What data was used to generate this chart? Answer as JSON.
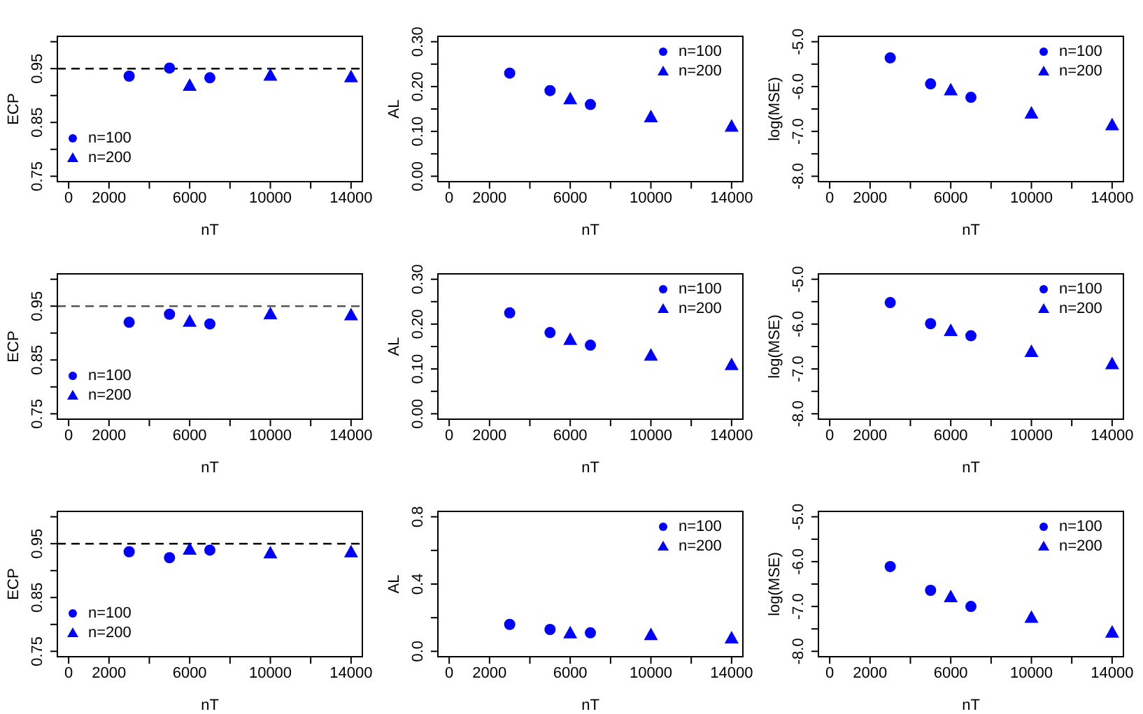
{
  "chart_data": [
    {
      "type": "scatter",
      "xlabel": "nT",
      "ylabel": "ECP",
      "legend": "bottom left",
      "xlim": [
        -560,
        14560
      ],
      "xticks": [
        0,
        2000,
        {
          "value": 4000,
          "label": null
        },
        6000,
        {
          "value": 8000,
          "label": null
        },
        10000,
        {
          "value": 12000,
          "label": null
        },
        14000
      ],
      "ylim": [
        0.74,
        1.01
      ],
      "yticks": [
        0.75,
        {
          "value": 0.8,
          "label": null
        },
        0.85,
        {
          "value": 0.9,
          "label": null
        },
        0.95,
        {
          "value": 1.0,
          "label": null
        }
      ],
      "ref_lines": [
        {
          "axis": "y",
          "value": 0.95,
          "color": "#000000",
          "line_style": "dashed"
        }
      ],
      "series": [
        {
          "name": "n=100",
          "color": "#0000ff",
          "marker": "circle",
          "x": [
            3000,
            5000,
            7000
          ],
          "values": [
            0.936,
            0.951,
            0.933
          ]
        },
        {
          "name": "n=200",
          "color": "#0000ff",
          "marker": "triangle",
          "x": [
            6000,
            10000,
            14000
          ],
          "values": [
            0.919,
            0.938,
            0.935
          ]
        }
      ]
    },
    {
      "type": "scatter",
      "xlabel": "nT",
      "ylabel": "AL",
      "legend": "top right",
      "xlim": [
        -560,
        14560
      ],
      "xticks": [
        0,
        2000,
        {
          "value": 4000,
          "label": null
        },
        6000,
        {
          "value": 8000,
          "label": null
        },
        10000,
        {
          "value": 12000,
          "label": null
        },
        14000
      ],
      "ylim": [
        -0.012,
        0.312
      ],
      "yticks": [
        {
          "value": 0,
          "label": "0.00"
        },
        {
          "value": 0.05,
          "label": null
        },
        {
          "value": 0.1,
          "label": "0.10"
        },
        {
          "value": 0.15,
          "label": null
        },
        {
          "value": 0.2,
          "label": "0.20"
        },
        {
          "value": 0.25,
          "label": null
        },
        {
          "value": 0.3,
          "label": "0.30"
        }
      ],
      "series": [
        {
          "name": "n=100",
          "color": "#0000ff",
          "marker": "circle",
          "x": [
            3000,
            5000,
            7000
          ],
          "values": [
            0.23,
            0.191,
            0.16
          ]
        },
        {
          "name": "n=200",
          "color": "#0000ff",
          "marker": "triangle",
          "x": [
            6000,
            10000,
            14000
          ],
          "values": [
            0.173,
            0.133,
            0.112
          ]
        }
      ]
    },
    {
      "type": "scatter",
      "xlabel": "nT",
      "ylabel": "log(MSE)",
      "legend": "top right",
      "xlim": [
        -560,
        14560
      ],
      "xticks": [
        0,
        2000,
        {
          "value": 4000,
          "label": null
        },
        6000,
        {
          "value": 8000,
          "label": null
        },
        10000,
        {
          "value": 12000,
          "label": null
        },
        14000
      ],
      "ylim": [
        -8.12,
        -4.88
      ],
      "yticks": [
        {
          "value": -5,
          "label": "-5.0"
        },
        {
          "value": -5.5,
          "label": null
        },
        {
          "value": -6,
          "label": "-6.0"
        },
        {
          "value": -6.5,
          "label": null
        },
        {
          "value": -7,
          "label": "-7.0"
        },
        {
          "value": -7.5,
          "label": null
        },
        {
          "value": -8,
          "label": "-8.0"
        }
      ],
      "series": [
        {
          "name": "n=100",
          "color": "#0000ff",
          "marker": "circle",
          "x": [
            3000,
            5000,
            7000
          ],
          "values": [
            -5.36,
            -5.94,
            -6.24
          ]
        },
        {
          "name": "n=200",
          "color": "#0000ff",
          "marker": "triangle",
          "x": [
            6000,
            10000,
            14000
          ],
          "values": [
            -6.07,
            -6.59,
            -6.85
          ]
        }
      ]
    },
    {
      "type": "scatter",
      "xlabel": "nT",
      "ylabel": "ECP",
      "legend": "bottom left",
      "xlim": [
        -560,
        14560
      ],
      "xticks": [
        0,
        2000,
        {
          "value": 4000,
          "label": null
        },
        6000,
        {
          "value": 8000,
          "label": null
        },
        10000,
        {
          "value": 12000,
          "label": null
        },
        14000
      ],
      "ylim": [
        0.74,
        1.01
      ],
      "yticks": [
        0.75,
        {
          "value": 0.8,
          "label": null
        },
        0.85,
        {
          "value": 0.9,
          "label": null
        },
        0.95,
        {
          "value": 1.0,
          "label": null
        }
      ],
      "ref_lines": [
        {
          "axis": "y",
          "value": 0.95,
          "color": "#555555",
          "line_style": "dashed"
        }
      ],
      "series": [
        {
          "name": "n=100",
          "color": "#0000ff",
          "marker": "circle",
          "x": [
            3000,
            5000,
            7000
          ],
          "values": [
            0.92,
            0.935,
            0.917
          ]
        },
        {
          "name": "n=200",
          "color": "#0000ff",
          "marker": "triangle",
          "x": [
            6000,
            10000,
            14000
          ],
          "values": [
            0.922,
            0.936,
            0.934
          ]
        }
      ]
    },
    {
      "type": "scatter",
      "xlabel": "nT",
      "ylabel": "AL",
      "legend": "top right",
      "xlim": [
        -560,
        14560
      ],
      "xticks": [
        0,
        2000,
        {
          "value": 4000,
          "label": null
        },
        6000,
        {
          "value": 8000,
          "label": null
        },
        10000,
        {
          "value": 12000,
          "label": null
        },
        14000
      ],
      "ylim": [
        -0.012,
        0.312
      ],
      "yticks": [
        {
          "value": 0,
          "label": "0.00"
        },
        {
          "value": 0.05,
          "label": null
        },
        {
          "value": 0.1,
          "label": "0.10"
        },
        {
          "value": 0.15,
          "label": null
        },
        {
          "value": 0.2,
          "label": "0.20"
        },
        {
          "value": 0.25,
          "label": null
        },
        {
          "value": 0.3,
          "label": "0.30"
        }
      ],
      "series": [
        {
          "name": "n=100",
          "color": "#0000ff",
          "marker": "circle",
          "x": [
            3000,
            5000,
            7000
          ],
          "values": [
            0.225,
            0.181,
            0.153
          ]
        },
        {
          "name": "n=200",
          "color": "#0000ff",
          "marker": "triangle",
          "x": [
            6000,
            10000,
            14000
          ],
          "values": [
            0.166,
            0.131,
            0.11
          ]
        }
      ]
    },
    {
      "type": "scatter",
      "xlabel": "nT",
      "ylabel": "log(MSE)",
      "legend": "top right",
      "xlim": [
        -560,
        14560
      ],
      "xticks": [
        0,
        2000,
        {
          "value": 4000,
          "label": null
        },
        6000,
        {
          "value": 8000,
          "label": null
        },
        10000,
        {
          "value": 12000,
          "label": null
        },
        14000
      ],
      "ylim": [
        -8.12,
        -4.88
      ],
      "yticks": [
        {
          "value": -5,
          "label": "-5.0"
        },
        {
          "value": -5.5,
          "label": null
        },
        {
          "value": -6,
          "label": "-6.0"
        },
        {
          "value": -6.5,
          "label": null
        },
        {
          "value": -7,
          "label": "-7.0"
        },
        {
          "value": -7.5,
          "label": null
        },
        {
          "value": -8,
          "label": "-8.0"
        }
      ],
      "series": [
        {
          "name": "n=100",
          "color": "#0000ff",
          "marker": "circle",
          "x": [
            3000,
            5000,
            7000
          ],
          "values": [
            -5.52,
            -5.99,
            -6.26
          ]
        },
        {
          "name": "n=200",
          "color": "#0000ff",
          "marker": "triangle",
          "x": [
            6000,
            10000,
            14000
          ],
          "values": [
            -6.14,
            -6.61,
            -6.88
          ]
        }
      ]
    },
    {
      "type": "scatter",
      "xlabel": "nT",
      "ylabel": "ECP",
      "legend": "bottom left",
      "xlim": [
        -560,
        14560
      ],
      "xticks": [
        0,
        2000,
        {
          "value": 4000,
          "label": null
        },
        6000,
        {
          "value": 8000,
          "label": null
        },
        10000,
        {
          "value": 12000,
          "label": null
        },
        14000
      ],
      "ylim": [
        0.74,
        1.01
      ],
      "yticks": [
        0.75,
        {
          "value": 0.8,
          "label": null
        },
        0.85,
        {
          "value": 0.9,
          "label": null
        },
        0.95,
        {
          "value": 1.0,
          "label": null
        }
      ],
      "ref_lines": [
        {
          "axis": "y",
          "value": 0.95,
          "color": "#000000",
          "line_style": "dashed"
        }
      ],
      "series": [
        {
          "name": "n=100",
          "color": "#0000ff",
          "marker": "circle",
          "x": [
            3000,
            5000,
            7000
          ],
          "values": [
            0.935,
            0.924,
            0.938
          ]
        },
        {
          "name": "n=200",
          "color": "#0000ff",
          "marker": "triangle",
          "x": [
            6000,
            10000,
            14000
          ],
          "values": [
            0.94,
            0.933,
            0.935
          ]
        }
      ]
    },
    {
      "type": "scatter",
      "xlabel": "nT",
      "ylabel": "AL",
      "legend": "top right",
      "xlim": [
        -560,
        14560
      ],
      "xticks": [
        0,
        2000,
        {
          "value": 4000,
          "label": null
        },
        6000,
        {
          "value": 8000,
          "label": null
        },
        10000,
        {
          "value": 12000,
          "label": null
        },
        14000
      ],
      "ylim": [
        -0.032,
        0.832
      ],
      "yticks": [
        {
          "value": 0,
          "label": "0.0"
        },
        {
          "value": 0.2,
          "label": null
        },
        {
          "value": 0.4,
          "label": "0.4"
        },
        {
          "value": 0.6,
          "label": null
        },
        {
          "value": 0.8,
          "label": "0.8"
        }
      ],
      "series": [
        {
          "name": "n=100",
          "color": "#0000ff",
          "marker": "circle",
          "x": [
            3000,
            5000,
            7000
          ],
          "values": [
            0.16,
            0.13,
            0.11
          ]
        },
        {
          "name": "n=200",
          "color": "#0000ff",
          "marker": "triangle",
          "x": [
            6000,
            10000,
            14000
          ],
          "values": [
            0.11,
            0.1,
            0.08
          ]
        }
      ]
    },
    {
      "type": "scatter",
      "xlabel": "nT",
      "ylabel": "log(MSE)",
      "legend": "top right",
      "xlim": [
        -560,
        14560
      ],
      "xticks": [
        0,
        2000,
        {
          "value": 4000,
          "label": null
        },
        6000,
        {
          "value": 8000,
          "label": null
        },
        10000,
        {
          "value": 12000,
          "label": null
        },
        14000
      ],
      "ylim": [
        -8.12,
        -4.88
      ],
      "yticks": [
        {
          "value": -5,
          "label": "-5.0"
        },
        {
          "value": -5.5,
          "label": null
        },
        {
          "value": -6,
          "label": "-6.0"
        },
        {
          "value": -6.5,
          "label": null
        },
        {
          "value": -7,
          "label": "-7.0"
        },
        {
          "value": -7.5,
          "label": null
        },
        {
          "value": -8,
          "label": "-8.0"
        }
      ],
      "series": [
        {
          "name": "n=100",
          "color": "#0000ff",
          "marker": "circle",
          "x": [
            3000,
            5000,
            7000
          ],
          "values": [
            -6.11,
            -6.64,
            -7.0
          ]
        },
        {
          "name": "n=200",
          "color": "#0000ff",
          "marker": "triangle",
          "x": [
            6000,
            10000,
            14000
          ],
          "values": [
            -6.78,
            -7.24,
            -7.57
          ]
        }
      ]
    }
  ]
}
